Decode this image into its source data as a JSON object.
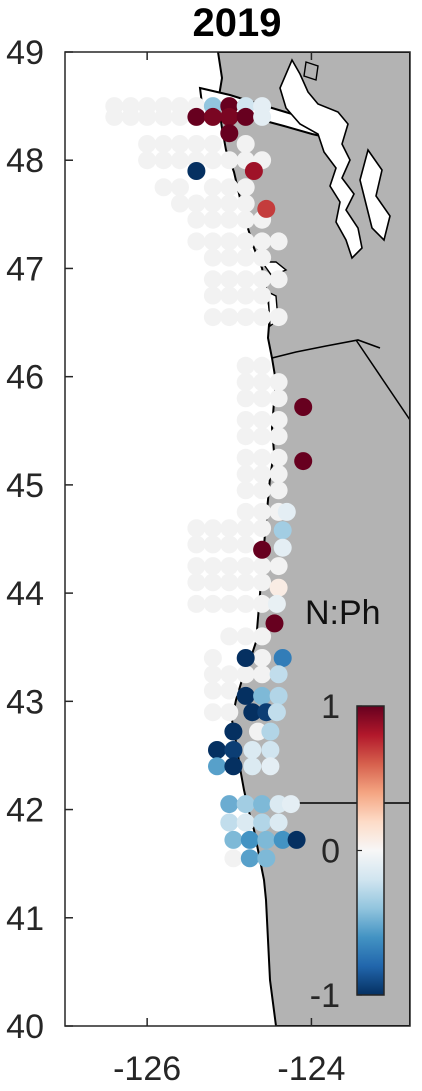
{
  "title": "2019",
  "map": {
    "lon_range": [
      -127.0,
      -122.8
    ],
    "lat_range": [
      40.0,
      49.0
    ],
    "land_color": "#b3b3b3",
    "ocean_color": "#ffffff",
    "coast_color": "#000000",
    "no_data_color": "#f2f2f2",
    "state_border_lat": 42.0
  },
  "axes": {
    "y_ticks": [
      {
        "value": 49,
        "label": "49"
      },
      {
        "value": 48,
        "label": "48"
      },
      {
        "value": 47,
        "label": "47"
      },
      {
        "value": 46,
        "label": "46"
      },
      {
        "value": 45,
        "label": "45"
      },
      {
        "value": 44,
        "label": "44"
      },
      {
        "value": 43,
        "label": "43"
      },
      {
        "value": 42,
        "label": "42"
      },
      {
        "value": 41,
        "label": "41"
      },
      {
        "value": 40,
        "label": "40"
      }
    ],
    "x_ticks": [
      {
        "value": -126,
        "label": "-126"
      },
      {
        "value": -124,
        "label": "-124"
      }
    ]
  },
  "colorbar": {
    "title": "N:Ph",
    "min": -1,
    "max": 1,
    "ticks": [
      {
        "value": 1,
        "label": "1"
      },
      {
        "value": 0,
        "label": "0"
      },
      {
        "value": -1,
        "label": "-1"
      }
    ],
    "colormap": [
      "#053061",
      "#2166ac",
      "#4393c3",
      "#92c5de",
      "#d1e5f0",
      "#f7f7f7",
      "#fddbc7",
      "#f4a582",
      "#d6604d",
      "#b2182b",
      "#67001f"
    ]
  },
  "stations": [
    {
      "lon": -126.4,
      "lat": 48.5,
      "v": null
    },
    {
      "lon": -126.2,
      "lat": 48.5,
      "v": null
    },
    {
      "lon": -126.0,
      "lat": 48.5,
      "v": null
    },
    {
      "lon": -125.8,
      "lat": 48.5,
      "v": null
    },
    {
      "lon": -125.6,
      "lat": 48.5,
      "v": null
    },
    {
      "lon": -125.4,
      "lat": 48.5,
      "v": null
    },
    {
      "lon": -125.2,
      "lat": 48.5,
      "v": -0.4
    },
    {
      "lon": -125.0,
      "lat": 48.5,
      "v": 1.0
    },
    {
      "lon": -124.8,
      "lat": 48.5,
      "v": -0.2
    },
    {
      "lon": -124.6,
      "lat": 48.5,
      "v": -0.1
    },
    {
      "lon": -126.4,
      "lat": 48.4,
      "v": null
    },
    {
      "lon": -126.2,
      "lat": 48.4,
      "v": null
    },
    {
      "lon": -126.0,
      "lat": 48.4,
      "v": null
    },
    {
      "lon": -125.8,
      "lat": 48.4,
      "v": null
    },
    {
      "lon": -125.6,
      "lat": 48.4,
      "v": null
    },
    {
      "lon": -125.4,
      "lat": 48.4,
      "v": 1.0
    },
    {
      "lon": -125.2,
      "lat": 48.4,
      "v": 0.95
    },
    {
      "lon": -125.0,
      "lat": 48.4,
      "v": 0.95
    },
    {
      "lon": -124.8,
      "lat": 48.4,
      "v": 1.0
    },
    {
      "lon": -124.6,
      "lat": 48.4,
      "v": -0.1
    },
    {
      "lon": -125.0,
      "lat": 48.25,
      "v": 1.0
    },
    {
      "lon": -126.0,
      "lat": 48.15,
      "v": null
    },
    {
      "lon": -125.8,
      "lat": 48.15,
      "v": null
    },
    {
      "lon": -125.6,
      "lat": 48.15,
      "v": null
    },
    {
      "lon": -125.4,
      "lat": 48.15,
      "v": null
    },
    {
      "lon": -125.2,
      "lat": 48.15,
      "v": null
    },
    {
      "lon": -124.8,
      "lat": 48.15,
      "v": null
    },
    {
      "lon": -126.0,
      "lat": 48.0,
      "v": null
    },
    {
      "lon": -125.8,
      "lat": 48.0,
      "v": null
    },
    {
      "lon": -125.6,
      "lat": 48.0,
      "v": null
    },
    {
      "lon": -125.4,
      "lat": 48.0,
      "v": null
    },
    {
      "lon": -125.2,
      "lat": 48.0,
      "v": null
    },
    {
      "lon": -125.0,
      "lat": 48.0,
      "v": null
    },
    {
      "lon": -124.8,
      "lat": 48.0,
      "v": null
    },
    {
      "lon": -124.6,
      "lat": 48.0,
      "v": null
    },
    {
      "lon": -125.4,
      "lat": 47.9,
      "v": -1.0
    },
    {
      "lon": -124.7,
      "lat": 47.9,
      "v": 0.85
    },
    {
      "lon": -125.8,
      "lat": 47.75,
      "v": null
    },
    {
      "lon": -125.6,
      "lat": 47.75,
      "v": null
    },
    {
      "lon": -125.2,
      "lat": 47.75,
      "v": null
    },
    {
      "lon": -125.0,
      "lat": 47.75,
      "v": null
    },
    {
      "lon": -124.8,
      "lat": 47.75,
      "v": null
    },
    {
      "lon": -125.6,
      "lat": 47.6,
      "v": null
    },
    {
      "lon": -125.4,
      "lat": 47.6,
      "v": null
    },
    {
      "lon": -125.2,
      "lat": 47.6,
      "v": null
    },
    {
      "lon": -125.0,
      "lat": 47.6,
      "v": null
    },
    {
      "lon": -124.8,
      "lat": 47.6,
      "v": null
    },
    {
      "lon": -124.55,
      "lat": 47.55,
      "v": 0.7
    },
    {
      "lon": -125.4,
      "lat": 47.45,
      "v": null
    },
    {
      "lon": -125.2,
      "lat": 47.45,
      "v": null
    },
    {
      "lon": -125.0,
      "lat": 47.45,
      "v": null
    },
    {
      "lon": -124.8,
      "lat": 47.45,
      "v": null
    },
    {
      "lon": -124.6,
      "lat": 47.45,
      "v": null
    },
    {
      "lon": -125.4,
      "lat": 47.25,
      "v": null
    },
    {
      "lon": -125.2,
      "lat": 47.25,
      "v": null
    },
    {
      "lon": -125.0,
      "lat": 47.25,
      "v": null
    },
    {
      "lon": -124.8,
      "lat": 47.25,
      "v": null
    },
    {
      "lon": -124.6,
      "lat": 47.25,
      "v": null
    },
    {
      "lon": -124.4,
      "lat": 47.25,
      "v": null
    },
    {
      "lon": -125.2,
      "lat": 47.1,
      "v": null
    },
    {
      "lon": -125.0,
      "lat": 47.1,
      "v": null
    },
    {
      "lon": -124.8,
      "lat": 47.1,
      "v": null
    },
    {
      "lon": -124.6,
      "lat": 47.1,
      "v": null
    },
    {
      "lon": -125.2,
      "lat": 46.9,
      "v": null
    },
    {
      "lon": -125.0,
      "lat": 46.9,
      "v": null
    },
    {
      "lon": -124.8,
      "lat": 46.9,
      "v": null
    },
    {
      "lon": -124.6,
      "lat": 46.9,
      "v": null
    },
    {
      "lon": -124.4,
      "lat": 46.9,
      "v": null
    },
    {
      "lon": -125.2,
      "lat": 46.75,
      "v": null
    },
    {
      "lon": -125.0,
      "lat": 46.75,
      "v": null
    },
    {
      "lon": -124.8,
      "lat": 46.75,
      "v": null
    },
    {
      "lon": -124.6,
      "lat": 46.75,
      "v": null
    },
    {
      "lon": -125.2,
      "lat": 46.55,
      "v": null
    },
    {
      "lon": -125.0,
      "lat": 46.55,
      "v": null
    },
    {
      "lon": -124.8,
      "lat": 46.55,
      "v": null
    },
    {
      "lon": -124.6,
      "lat": 46.55,
      "v": null
    },
    {
      "lon": -124.4,
      "lat": 46.55,
      "v": null
    },
    {
      "lon": -124.8,
      "lat": 46.1,
      "v": null
    },
    {
      "lon": -124.6,
      "lat": 46.1,
      "v": null
    },
    {
      "lon": -124.8,
      "lat": 45.95,
      "v": null
    },
    {
      "lon": -124.6,
      "lat": 45.95,
      "v": null
    },
    {
      "lon": -124.4,
      "lat": 45.95,
      "v": null
    },
    {
      "lon": -124.8,
      "lat": 45.8,
      "v": null
    },
    {
      "lon": -124.6,
      "lat": 45.8,
      "v": null
    },
    {
      "lon": -124.4,
      "lat": 45.8,
      "v": null
    },
    {
      "lon": -124.1,
      "lat": 45.72,
      "v": 1.0
    },
    {
      "lon": -124.8,
      "lat": 45.6,
      "v": null
    },
    {
      "lon": -124.6,
      "lat": 45.6,
      "v": null
    },
    {
      "lon": -124.4,
      "lat": 45.6,
      "v": null
    },
    {
      "lon": -124.8,
      "lat": 45.45,
      "v": null
    },
    {
      "lon": -124.6,
      "lat": 45.45,
      "v": null
    },
    {
      "lon": -124.4,
      "lat": 45.45,
      "v": null
    },
    {
      "lon": -124.8,
      "lat": 45.25,
      "v": null
    },
    {
      "lon": -124.6,
      "lat": 45.25,
      "v": null
    },
    {
      "lon": -124.4,
      "lat": 45.25,
      "v": null
    },
    {
      "lon": -124.1,
      "lat": 45.22,
      "v": 1.0
    },
    {
      "lon": -124.8,
      "lat": 45.1,
      "v": null
    },
    {
      "lon": -124.6,
      "lat": 45.1,
      "v": null
    },
    {
      "lon": -124.4,
      "lat": 45.1,
      "v": null
    },
    {
      "lon": -124.8,
      "lat": 44.95,
      "v": null
    },
    {
      "lon": -124.6,
      "lat": 44.95,
      "v": null
    },
    {
      "lon": -124.4,
      "lat": 44.95,
      "v": null
    },
    {
      "lon": -124.8,
      "lat": 44.75,
      "v": null
    },
    {
      "lon": -124.6,
      "lat": 44.75,
      "v": null
    },
    {
      "lon": -124.4,
      "lat": 44.75,
      "v": null
    },
    {
      "lon": -124.3,
      "lat": 44.75,
      "v": -0.1
    },
    {
      "lon": -125.4,
      "lat": 44.6,
      "v": null
    },
    {
      "lon": -125.2,
      "lat": 44.6,
      "v": null
    },
    {
      "lon": -125.0,
      "lat": 44.6,
      "v": null
    },
    {
      "lon": -124.8,
      "lat": 44.6,
      "v": null
    },
    {
      "lon": -124.6,
      "lat": 44.6,
      "v": null
    },
    {
      "lon": -124.35,
      "lat": 44.58,
      "v": -0.35
    },
    {
      "lon": -125.4,
      "lat": 44.45,
      "v": null
    },
    {
      "lon": -125.2,
      "lat": 44.45,
      "v": null
    },
    {
      "lon": -125.0,
      "lat": 44.45,
      "v": null
    },
    {
      "lon": -124.8,
      "lat": 44.45,
      "v": null
    },
    {
      "lon": -124.6,
      "lat": 44.4,
      "v": 1.0
    },
    {
      "lon": -124.35,
      "lat": 44.42,
      "v": -0.1
    },
    {
      "lon": -125.4,
      "lat": 44.25,
      "v": null
    },
    {
      "lon": -125.2,
      "lat": 44.25,
      "v": null
    },
    {
      "lon": -125.0,
      "lat": 44.25,
      "v": null
    },
    {
      "lon": -124.8,
      "lat": 44.25,
      "v": null
    },
    {
      "lon": -124.6,
      "lat": 44.25,
      "v": null
    },
    {
      "lon": -124.4,
      "lat": 44.25,
      "v": null
    },
    {
      "lon": -125.4,
      "lat": 44.1,
      "v": null
    },
    {
      "lon": -125.2,
      "lat": 44.1,
      "v": null
    },
    {
      "lon": -125.0,
      "lat": 44.1,
      "v": null
    },
    {
      "lon": -124.8,
      "lat": 44.1,
      "v": null
    },
    {
      "lon": -124.6,
      "lat": 44.1,
      "v": null
    },
    {
      "lon": -124.4,
      "lat": 44.05,
      "v": 0.08
    },
    {
      "lon": -125.4,
      "lat": 43.9,
      "v": null
    },
    {
      "lon": -125.2,
      "lat": 43.9,
      "v": null
    },
    {
      "lon": -125.0,
      "lat": 43.9,
      "v": null
    },
    {
      "lon": -124.8,
      "lat": 43.9,
      "v": null
    },
    {
      "lon": -124.6,
      "lat": 43.9,
      "v": null
    },
    {
      "lon": -124.42,
      "lat": 43.9,
      "v": -0.08
    },
    {
      "lon": -124.45,
      "lat": 43.72,
      "v": 1.0
    },
    {
      "lon": -125.0,
      "lat": 43.6,
      "v": null
    },
    {
      "lon": -124.8,
      "lat": 43.6,
      "v": null
    },
    {
      "lon": -124.6,
      "lat": 43.6,
      "v": null
    },
    {
      "lon": -125.2,
      "lat": 43.4,
      "v": null
    },
    {
      "lon": -124.8,
      "lat": 43.4,
      "v": -1.0
    },
    {
      "lon": -124.6,
      "lat": 43.4,
      "v": null
    },
    {
      "lon": -124.35,
      "lat": 43.4,
      "v": -0.7
    },
    {
      "lon": -125.2,
      "lat": 43.25,
      "v": null
    },
    {
      "lon": -125.0,
      "lat": 43.25,
      "v": null
    },
    {
      "lon": -124.8,
      "lat": 43.25,
      "v": null
    },
    {
      "lon": -124.6,
      "lat": 43.25,
      "v": null
    },
    {
      "lon": -124.4,
      "lat": 43.25,
      "v": -0.25
    },
    {
      "lon": -125.2,
      "lat": 43.1,
      "v": null
    },
    {
      "lon": -125.0,
      "lat": 43.1,
      "v": null
    },
    {
      "lon": -124.8,
      "lat": 43.05,
      "v": -1.0
    },
    {
      "lon": -124.6,
      "lat": 43.05,
      "v": -0.45
    },
    {
      "lon": -124.4,
      "lat": 43.05,
      "v": -0.3
    },
    {
      "lon": -125.2,
      "lat": 42.9,
      "v": null
    },
    {
      "lon": -125.0,
      "lat": 42.9,
      "v": null
    },
    {
      "lon": -124.72,
      "lat": 42.9,
      "v": -1.0
    },
    {
      "lon": -124.55,
      "lat": 42.9,
      "v": -0.95
    },
    {
      "lon": -124.42,
      "lat": 42.9,
      "v": -0.25
    },
    {
      "lon": -124.95,
      "lat": 42.72,
      "v": -1.0
    },
    {
      "lon": -124.65,
      "lat": 42.72,
      "v": null
    },
    {
      "lon": -124.5,
      "lat": 42.72,
      "v": -0.3
    },
    {
      "lon": -125.15,
      "lat": 42.55,
      "v": -1.0
    },
    {
      "lon": -124.95,
      "lat": 42.55,
      "v": -0.95
    },
    {
      "lon": -124.72,
      "lat": 42.55,
      "v": -0.15
    },
    {
      "lon": -124.5,
      "lat": 42.55,
      "v": -0.2
    },
    {
      "lon": -125.15,
      "lat": 42.4,
      "v": -0.55
    },
    {
      "lon": -124.95,
      "lat": 42.4,
      "v": -1.0
    },
    {
      "lon": -124.72,
      "lat": 42.4,
      "v": -0.15
    },
    {
      "lon": -124.5,
      "lat": 42.4,
      "v": -0.1
    },
    {
      "lon": -125.0,
      "lat": 42.05,
      "v": -0.5
    },
    {
      "lon": -124.8,
      "lat": 42.05,
      "v": -0.35
    },
    {
      "lon": -124.6,
      "lat": 42.05,
      "v": -0.45
    },
    {
      "lon": -124.4,
      "lat": 42.05,
      "v": -0.15
    },
    {
      "lon": -124.25,
      "lat": 42.05,
      "v": -0.1
    },
    {
      "lon": -125.0,
      "lat": 41.88,
      "v": -0.25
    },
    {
      "lon": -124.8,
      "lat": 41.88,
      "v": -0.15
    },
    {
      "lon": -124.6,
      "lat": 41.88,
      "v": -0.3
    },
    {
      "lon": -124.4,
      "lat": 41.88,
      "v": -0.15
    },
    {
      "lon": -124.95,
      "lat": 41.72,
      "v": -0.45
    },
    {
      "lon": -124.75,
      "lat": 41.72,
      "v": -0.6
    },
    {
      "lon": -124.55,
      "lat": 41.72,
      "v": -0.45
    },
    {
      "lon": -124.35,
      "lat": 41.72,
      "v": -0.6
    },
    {
      "lon": -124.18,
      "lat": 41.72,
      "v": -1.0
    },
    {
      "lon": -124.95,
      "lat": 41.55,
      "v": null
    },
    {
      "lon": -124.75,
      "lat": 41.55,
      "v": -0.55
    },
    {
      "lon": -124.55,
      "lat": 41.55,
      "v": -0.45
    }
  ]
}
